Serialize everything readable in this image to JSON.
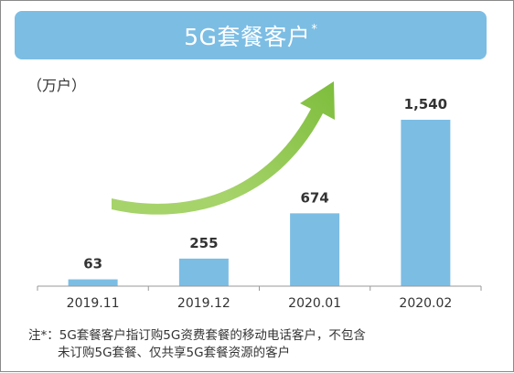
{
  "banner": {
    "title": "5G套餐客户",
    "mark": "*"
  },
  "unit_label": "（万户）",
  "note": {
    "line1": "注*：5G套餐客户指订购5G资费套餐的移动电话客户，不包含",
    "line2": "未订购5G套餐、仅共享5G套餐资源的客户"
  },
  "colors": {
    "bar": "#7cbde4",
    "banner": "#7cbde4",
    "arrow": "#8cc63f",
    "axis": "#999999",
    "text": "#333333"
  },
  "chart_data": {
    "type": "bar",
    "title": "5G套餐客户*",
    "ylabel": "（万户）",
    "categories": [
      "2019.11",
      "2019.12",
      "2020.01",
      "2020.02"
    ],
    "values": [
      63,
      255,
      674,
      1540
    ],
    "value_labels": [
      "63",
      "255",
      "674",
      "1,540"
    ],
    "ylim": [
      0,
      1540
    ],
    "grid": false,
    "legend": "none",
    "annotation": "green upward trend arrow"
  }
}
